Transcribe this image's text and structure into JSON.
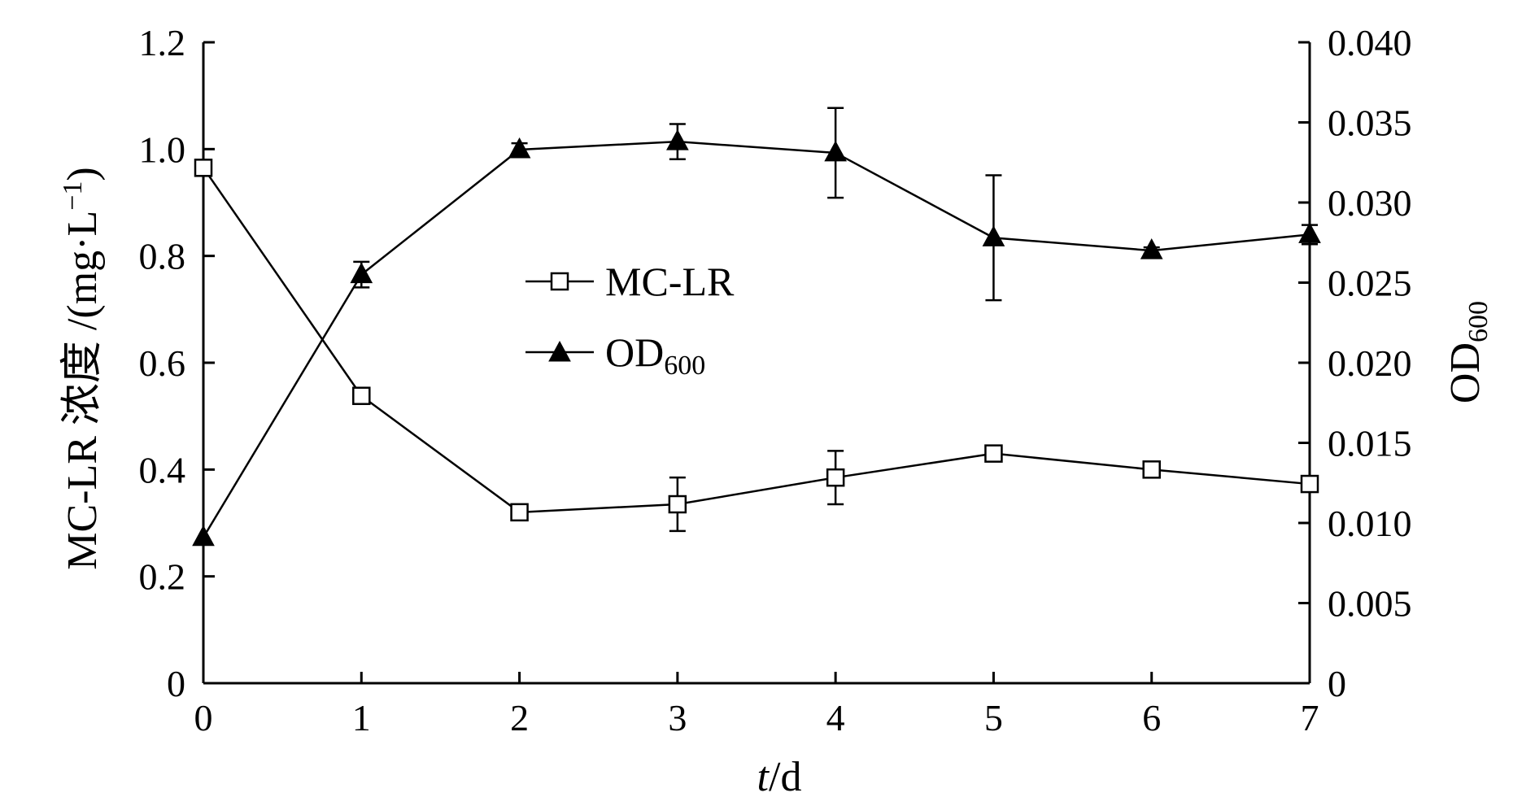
{
  "chart_data": {
    "type": "line",
    "x": [
      0,
      1,
      2,
      3,
      4,
      5,
      6,
      7
    ],
    "xlabel_italic": "t",
    "xlabel_rest": "/d",
    "xlim": [
      0,
      7
    ],
    "x_ticks": [
      "0",
      "1",
      "2",
      "3",
      "4",
      "5",
      "6",
      "7"
    ],
    "ylabel_left": "MC-LR 浓度 /(mg·L",
    "ylabel_left_sup": "−1",
    "ylabel_left_close": ")",
    "ylim_left": [
      0,
      1.2
    ],
    "y_ticks_left": [
      "0",
      "0.2",
      "0.4",
      "0.6",
      "0.8",
      "1.0",
      "1.2"
    ],
    "ylabel_right": "OD",
    "ylabel_right_sub": "600",
    "ylim_right": [
      0,
      0.04
    ],
    "y_ticks_right": [
      "0",
      "0.005",
      "0.010",
      "0.015",
      "0.020",
      "0.025",
      "0.030",
      "0.035",
      "0.040"
    ],
    "legend_position": "center-left",
    "grid": false,
    "series": [
      {
        "name": "MC-LR",
        "axis": "left",
        "marker": "open-square",
        "values": [
          0.965,
          0.538,
          0.32,
          0.335,
          0.385,
          0.43,
          0.4,
          0.373
        ],
        "errors": [
          0.0,
          0.01,
          0.01,
          0.05,
          0.05,
          0.0,
          0.01,
          0.0
        ]
      },
      {
        "name": "OD",
        "name_sub": "600",
        "axis": "right",
        "marker": "filled-triangle",
        "values": [
          0.0091,
          0.0255,
          0.0333,
          0.0338,
          0.0331,
          0.0278,
          0.027,
          0.028
        ],
        "errors": [
          0.0,
          0.0008,
          0.0004,
          0.0011,
          0.0028,
          0.0039,
          0.0002,
          0.0006
        ]
      }
    ]
  }
}
